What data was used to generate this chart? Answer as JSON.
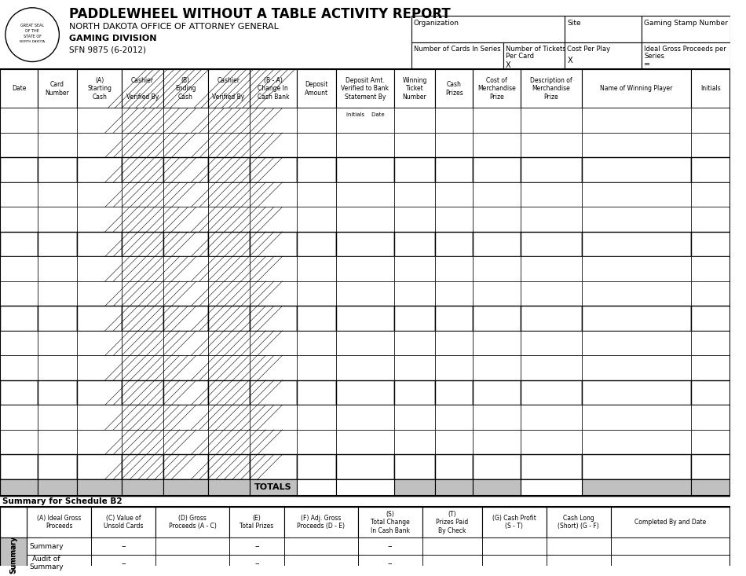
{
  "title": "PADDLEWHEEL WITHOUT A TABLE ACTIVITY REPORT",
  "subtitle1": "NORTH DAKOTA OFFICE OF ATTORNEY GENERAL",
  "subtitle2": "GAMING DIVISION",
  "form_number": "SFN 9875 (6-2012)",
  "bg_color": "#ffffff",
  "gray_color": "#c0c0c0",
  "dark_gray": "#a0a0a0",
  "header_fields": [
    [
      "Organization",
      "Site",
      "Gaming Stamp Number"
    ],
    [
      "Number of Cards In Series",
      "Number of Tickets\nPer Card\nX",
      "Cost Per Play\n\nX",
      "Ideal Gross Proceeds per\nSeries\n="
    ]
  ],
  "col_headers": [
    "Date",
    "Card\nNumber",
    "(A)\nStarting\nCash",
    "Cashier\n\nVerified By",
    "(B)\nEnding\nCash",
    "Cashier\n\nVerified By",
    "(B - A)\nChange In\nCash Bank",
    "Deposit\nAmount",
    "Deposit Amt.\nVerified to Bank\nStatement By",
    "Winning\nTicket\nNumber",
    "Cash\nPrizes",
    "Cost of\nMerchandise\nPrize",
    "Description of\nMerchandise\nPrize",
    "Name of Winning Player",
    "Initials"
  ],
  "num_data_rows": 15,
  "summary_cols": [
    "(A) Ideal Gross\nProceeds",
    "(C) Value of\nUnsold Cards",
    "(D) Gross\nProceeds (A - C)",
    "(E)\nTotal Prizes",
    "(F) Adj. Gross\nProceeds (D - E)",
    "(S)\nTotal Change\nIn Cash Bank",
    "(T)\nPrizes Paid\nBy Check",
    "(G) Cash Profit\n(S - T)",
    "Cash Long\n(Short) (G - F)",
    "Completed By and Date"
  ]
}
